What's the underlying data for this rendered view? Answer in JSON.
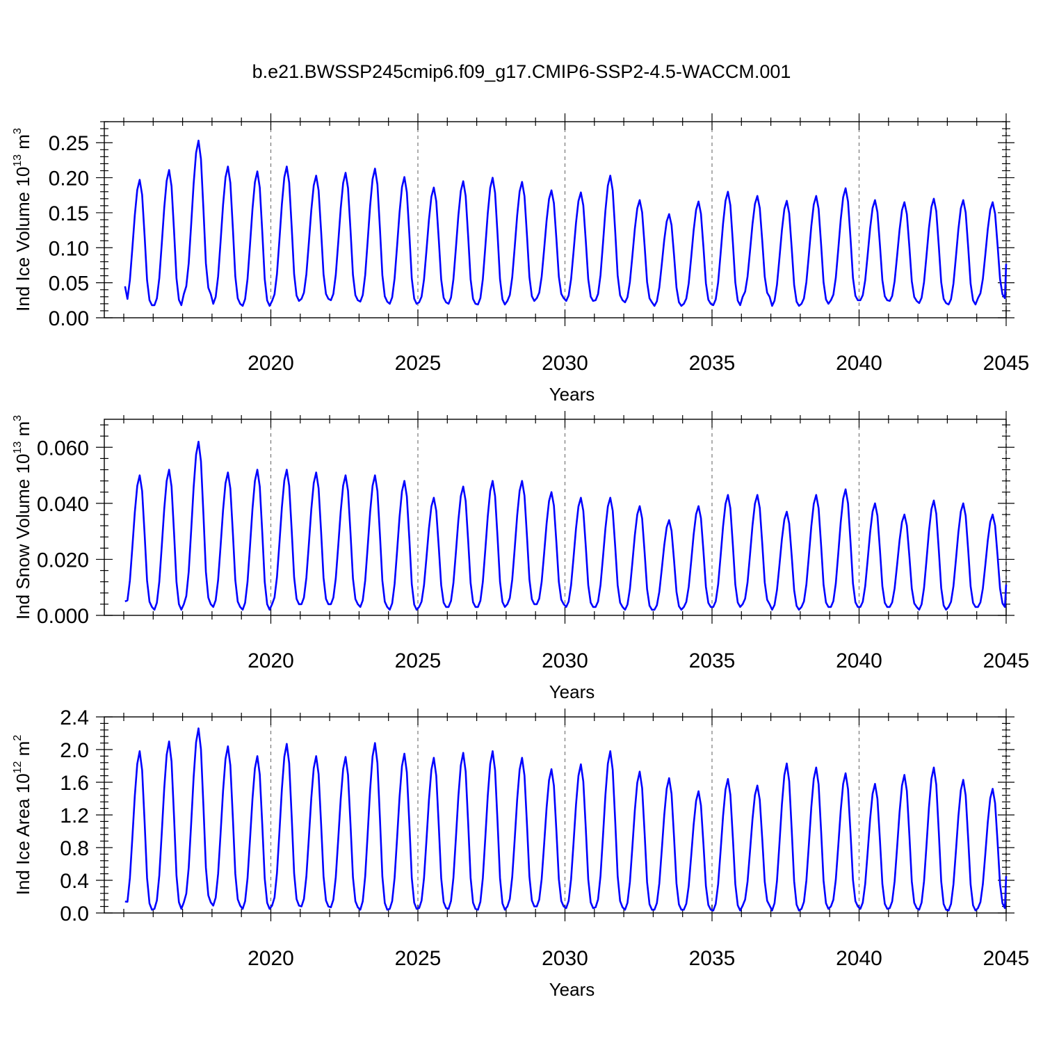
{
  "figure_title": "b.e21.BWSSP245cmip6.f09_g17.CMIP6-SSP2-4.5-WACCM.001",
  "colors": {
    "series": "#0000ff",
    "grid": "#777777",
    "axes": "#000000"
  },
  "chart_data": [
    {
      "type": "line",
      "ylabel": {
        "text": "Ind Ice Volume 10",
        "exp": "13",
        "unit": " m",
        "unit_exp": "3"
      },
      "xlabel": "Years",
      "xlim": [
        2015,
        2045
      ],
      "ylim": [
        0,
        0.28
      ],
      "xticks": [
        2020,
        2025,
        2030,
        2035,
        2040,
        2045
      ],
      "yticks": [
        0,
        0.05,
        0.1,
        0.15,
        0.2,
        0.25
      ],
      "ytick_labels": [
        "0.00",
        "0.05",
        "0.10",
        "0.15",
        "0.20",
        "0.25"
      ],
      "grid": "x-dashed",
      "series": [
        {
          "seasonal": true,
          "annual_max": [
            0.197,
            0.211,
            0.253,
            0.216,
            0.209,
            0.216,
            0.203,
            0.207,
            0.213,
            0.201,
            0.186,
            0.195,
            0.2,
            0.194,
            0.182,
            0.179,
            0.203,
            0.168,
            0.148,
            0.166,
            0.18,
            0.174,
            0.167,
            0.174,
            0.185,
            0.168,
            0.165,
            0.17,
            0.168,
            0.165
          ],
          "annual_min": [
            0.018,
            0.018,
            0.034,
            0.02,
            0.017,
            0.024,
            0.027,
            0.025,
            0.023,
            0.02,
            0.022,
            0.02,
            0.019,
            0.024,
            0.028,
            0.024,
            0.025,
            0.022,
            0.017,
            0.02,
            0.018,
            0.03,
            0.017,
            0.02,
            0.025,
            0.025,
            0.024,
            0.021,
            0.019,
            0.028
          ],
          "start_value": 0.045,
          "end_value": 0.077
        }
      ]
    },
    {
      "type": "line",
      "ylabel": {
        "text": "Ind Snow Volume 10",
        "exp": "13",
        "unit": " m",
        "unit_exp": "3"
      },
      "xlabel": "Years",
      "xlim": [
        2015,
        2045
      ],
      "ylim": [
        0,
        0.07
      ],
      "xticks": [
        2020,
        2025,
        2030,
        2035,
        2040,
        2045
      ],
      "yticks": [
        0,
        0.02,
        0.04,
        0.06
      ],
      "ytick_labels": [
        "0.000",
        "0.020",
        "0.040",
        "0.060"
      ],
      "grid": "x-dashed",
      "series": [
        {
          "seasonal": true,
          "annual_max": [
            0.05,
            0.052,
            0.062,
            0.051,
            0.052,
            0.052,
            0.051,
            0.05,
            0.05,
            0.048,
            0.042,
            0.046,
            0.048,
            0.048,
            0.044,
            0.042,
            0.042,
            0.039,
            0.034,
            0.039,
            0.043,
            0.043,
            0.037,
            0.043,
            0.045,
            0.04,
            0.036,
            0.041,
            0.04,
            0.036
          ],
          "annual_min": [
            0.003,
            0.002,
            0.004,
            0.003,
            0.002,
            0.004,
            0.004,
            0.004,
            0.003,
            0.002,
            0.003,
            0.003,
            0.003,
            0.004,
            0.004,
            0.003,
            0.003,
            0.002,
            0.002,
            0.003,
            0.003,
            0.004,
            0.002,
            0.003,
            0.003,
            0.003,
            0.003,
            0.002,
            0.003,
            0.003
          ],
          "start_value": 0.005,
          "end_value": 0.011
        }
      ]
    },
    {
      "type": "line",
      "ylabel": {
        "text": "Ind Ice Area 10",
        "exp": "12",
        "unit": " m",
        "unit_exp": "2"
      },
      "xlabel": "Years",
      "xlim": [
        2015,
        2045
      ],
      "ylim": [
        0,
        2.4
      ],
      "xticks": [
        2020,
        2025,
        2030,
        2035,
        2040,
        2045
      ],
      "yticks": [
        0,
        0.4,
        0.8,
        1.2,
        1.6,
        2.0,
        2.4
      ],
      "ytick_labels": [
        "0.0",
        "0.4",
        "0.8",
        "1.2",
        "1.6",
        "2.0",
        "2.4"
      ],
      "grid": "x-dashed",
      "series": [
        {
          "seasonal": true,
          "annual_max": [
            1.98,
            2.1,
            2.26,
            2.04,
            1.92,
            2.07,
            1.92,
            1.91,
            2.08,
            1.95,
            1.9,
            1.96,
            1.98,
            1.9,
            1.76,
            1.82,
            1.98,
            1.73,
            1.65,
            1.49,
            1.64,
            1.56,
            1.83,
            1.78,
            1.71,
            1.58,
            1.69,
            1.78,
            1.63,
            1.52
          ],
          "annual_min": [
            0.04,
            0.05,
            0.13,
            0.09,
            0.05,
            0.09,
            0.08,
            0.07,
            0.04,
            0.05,
            0.06,
            0.05,
            0.04,
            0.08,
            0.08,
            0.06,
            0.07,
            0.04,
            0.04,
            0.04,
            0.03,
            0.09,
            0.03,
            0.05,
            0.08,
            0.05,
            0.06,
            0.04,
            0.03,
            0.06
          ],
          "start_value": 0.14,
          "end_value": 0.45
        }
      ]
    }
  ]
}
